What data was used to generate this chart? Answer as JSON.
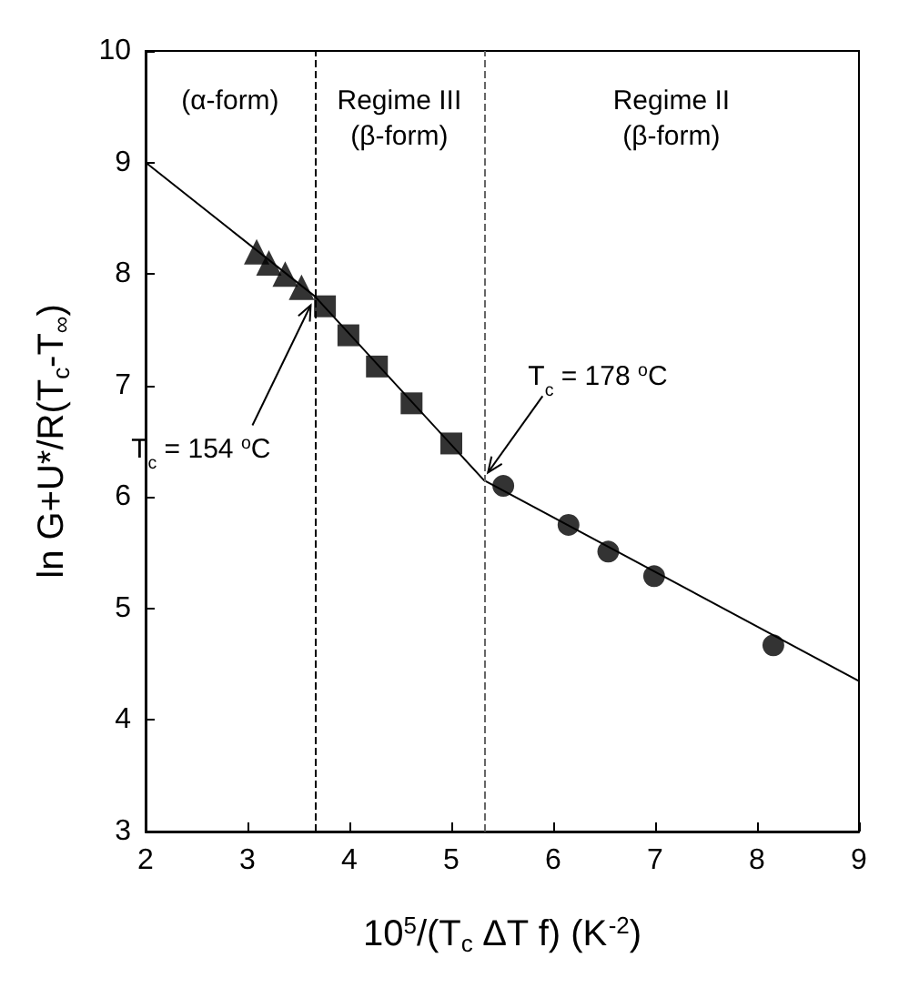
{
  "chart_data": {
    "type": "scatter",
    "xlabel": "10$^{5}$/(T$_{c}$ ΔT f) (K$^{-2}$)",
    "ylabel": "ln G+U*/R(T$_{c}$-T$_{∞}$)",
    "xlim": [
      2,
      9
    ],
    "xticks": [
      2,
      3,
      4,
      5,
      6,
      7,
      8,
      9
    ],
    "ylim": [
      3,
      10
    ],
    "yticks": [
      3,
      4,
      5,
      6,
      7,
      8,
      9,
      10
    ],
    "grid": false,
    "series": [
      {
        "marker": "triangle",
        "color": "#000000",
        "x": [
          3.09,
          3.21,
          3.37,
          3.53
        ],
        "values": [
          8.2,
          8.1,
          8.0,
          7.88
        ]
      },
      {
        "marker": "square",
        "color": "#000000",
        "x": [
          3.76,
          3.99,
          4.27,
          4.61,
          5.0
        ],
        "values": [
          7.71,
          7.45,
          7.17,
          6.84,
          6.48
        ]
      },
      {
        "marker": "circle",
        "color": "#000000",
        "x": [
          5.51,
          6.15,
          6.54,
          6.99,
          8.16
        ],
        "values": [
          6.1,
          5.75,
          5.51,
          5.29,
          4.67
        ]
      },
      {
        "type": "line",
        "marker": "none",
        "color": "#000000",
        "x": [
          2,
          3.66,
          5.32,
          9
        ],
        "values": [
          9.0,
          7.8,
          6.15,
          4.35
        ]
      }
    ],
    "ref_lines": [
      {
        "axis": "x",
        "value": 3.66,
        "color": "#000000",
        "line_style": "dashed"
      },
      {
        "axis": "x",
        "value": 5.32,
        "color": "#666666",
        "line_style": "dashed"
      }
    ],
    "annotations": [
      "(α-form)",
      "Regime III\n(β-form)",
      "Regime II\n(β-form)",
      {
        "text": "T$_{c}$ = 154 $^{o}$C",
        "x": 3.62,
        "y": 7.72
      },
      {
        "text": "T$_{c}$ = 178 $^{o}$C",
        "x": 5.36,
        "y": 6.22
      }
    ]
  }
}
